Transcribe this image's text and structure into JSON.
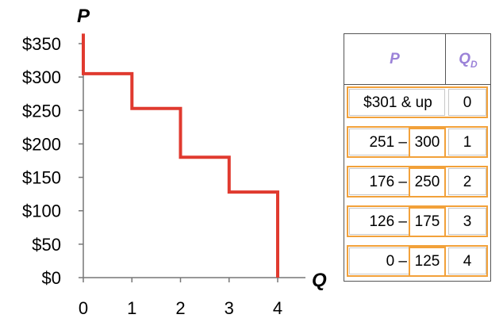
{
  "chart_data": {
    "type": "line",
    "step": true,
    "xlabel": "Q",
    "ylabel": "P",
    "xlim": [
      0,
      4
    ],
    "ylim": [
      0,
      350
    ],
    "yticks": [
      0,
      50,
      100,
      150,
      200,
      250,
      300,
      350
    ],
    "ytick_labels": [
      "$0",
      "$50",
      "$100",
      "$150",
      "$200",
      "$250",
      "$300",
      "$350"
    ],
    "xticks": [
      0,
      1,
      2,
      3,
      4
    ],
    "xtick_labels": [
      "0",
      "1",
      "2",
      "3",
      "4"
    ],
    "series": [
      {
        "color": "#e03a2f",
        "points": [
          [
            0,
            365
          ],
          [
            0,
            305
          ],
          [
            1,
            305
          ],
          [
            1,
            253
          ],
          [
            2,
            253
          ],
          [
            2,
            180
          ],
          [
            3,
            180
          ],
          [
            3,
            128
          ],
          [
            4,
            128
          ],
          [
            4,
            0
          ]
        ]
      }
    ],
    "table": {
      "headers": {
        "price": "P",
        "qty_main": "Q",
        "qty_sub": "D"
      },
      "rows": [
        {
          "price": "$301 & up",
          "qty": "0"
        },
        {
          "price_low": "251 –",
          "price_high": "300",
          "qty": "1"
        },
        {
          "price_low": "176 –",
          "price_high": "250",
          "qty": "2"
        },
        {
          "price_low": "126 –",
          "price_high": "175",
          "qty": "3"
        },
        {
          "price_low": "0 –",
          "price_high": "125",
          "qty": "4"
        }
      ]
    }
  },
  "colors": {
    "demand_line": "#e03a2f",
    "highlight": "#f2a13a",
    "header_text": "#9b82d8"
  }
}
